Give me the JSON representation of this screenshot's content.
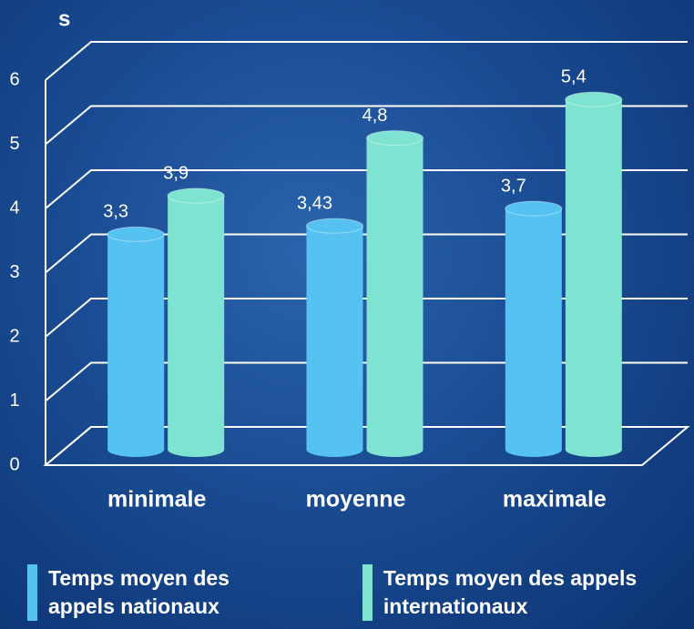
{
  "chart_data": {
    "type": "bar3d",
    "y_axis_label": "s",
    "categories": [
      "minimale",
      "moyenne",
      "maximale"
    ],
    "series": [
      {
        "name": "Temps moyen des appels nationaux",
        "color": "#55c2f2",
        "values": [
          3.3,
          3.43,
          3.7
        ],
        "value_labels": [
          "3,3",
          "3,43",
          "3,7"
        ]
      },
      {
        "name": "Temps moyen des appels internationaux",
        "color": "#7fe3d2",
        "values": [
          3.9,
          4.8,
          5.4
        ],
        "value_labels": [
          "3,9",
          "4,8",
          "5,4"
        ]
      }
    ],
    "ylim": [
      0,
      6
    ],
    "yticks": [
      0,
      1,
      2,
      3,
      4,
      5,
      6
    ],
    "grid": true
  }
}
